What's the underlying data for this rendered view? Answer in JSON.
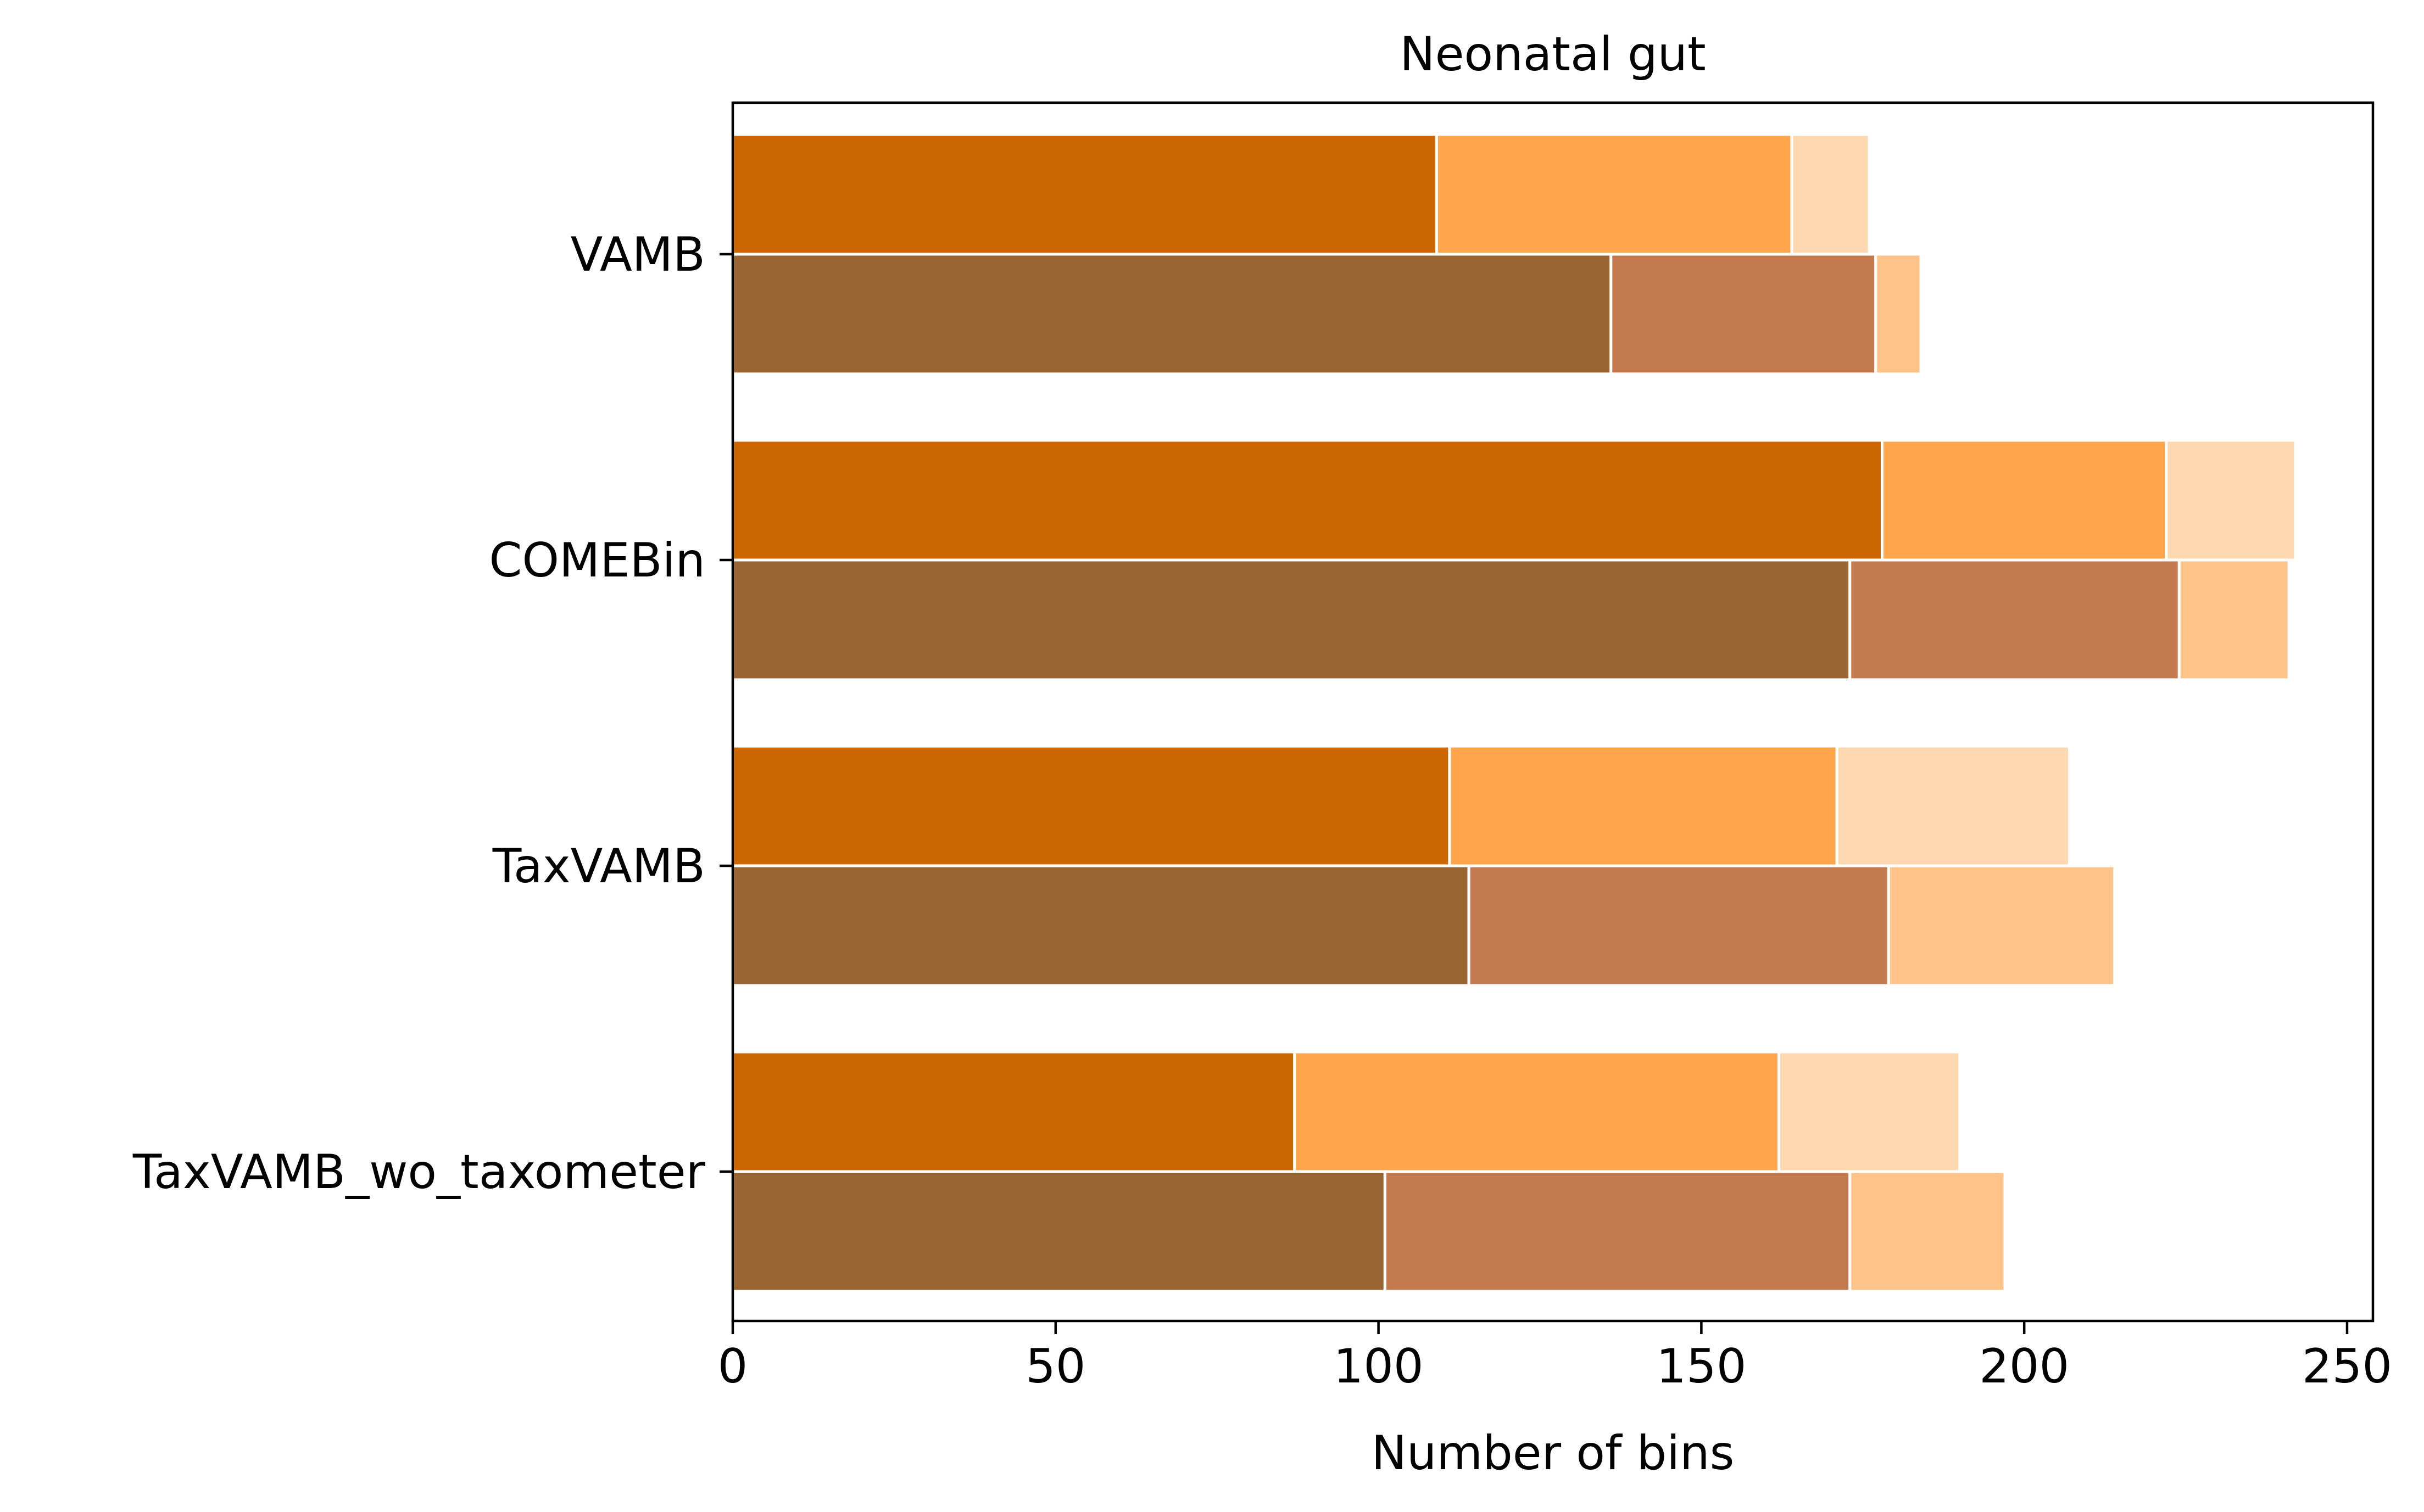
{
  "chart_data": {
    "type": "bar",
    "orientation": "horizontal",
    "title": "Neonatal gut",
    "xlabel": "Number of bins",
    "ylabel": "",
    "xlim": [
      0,
      254
    ],
    "xticks": [
      0,
      50,
      100,
      150,
      200,
      250
    ],
    "categories": [
      "VAMB",
      "COMEBin",
      "TaxVAMB",
      "TaxVAMB_wo_taxometer"
    ],
    "groups": [
      {
        "segments": [
          {
            "values": [
              109,
              178,
              111,
              87
            ],
            "color": "#cc6600"
          },
          {
            "values": [
              55,
              44,
              60,
              75
            ],
            "color": "#ffa64d"
          },
          {
            "values": [
              12,
              20,
              36,
              28
            ],
            "color": "#fed8b1"
          }
        ]
      },
      {
        "segments": [
          {
            "values": [
              136,
              173,
              114,
              101
            ],
            "color": "#996633"
          },
          {
            "values": [
              41,
              51,
              65,
              72
            ],
            "color": "#c47a4f"
          },
          {
            "values": [
              7,
              17,
              35,
              24
            ],
            "color": "#fdc389"
          }
        ]
      }
    ],
    "grid": false,
    "legend": false
  }
}
